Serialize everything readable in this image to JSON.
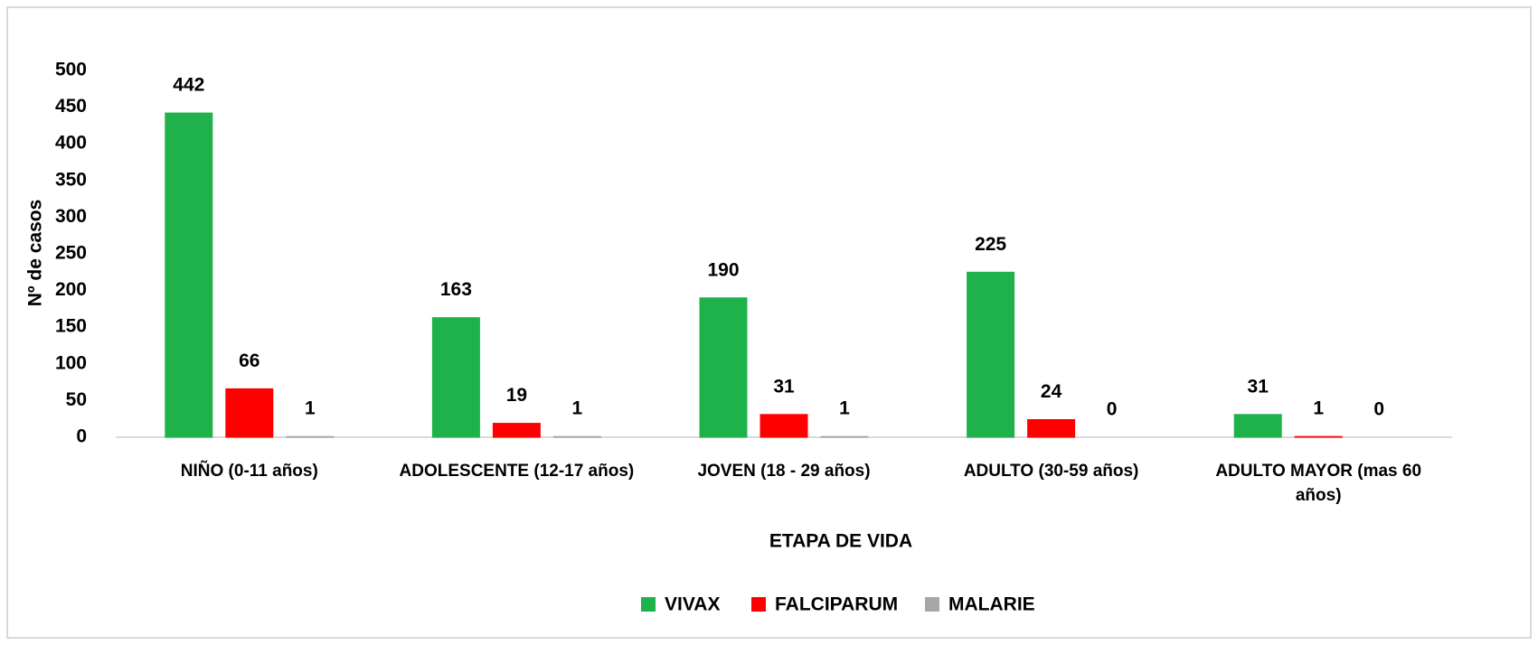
{
  "chart_data": {
    "type": "bar",
    "x_label": "ETAPA DE VIDA",
    "y_label": "Nº de casos",
    "categories": [
      "NIÑO (0-11 años)",
      "ADOLESCENTE (12-17 años)",
      "JOVEN (18 - 29 años)",
      "ADULTO (30-59 años)",
      "ADULTO MAYOR (mas 60 años)"
    ],
    "series": [
      {
        "name": "VIVAX",
        "color": "#1fb24a",
        "values": [
          442,
          163,
          190,
          225,
          31
        ]
      },
      {
        "name": "FALCIPARUM",
        "color": "#ff0000",
        "values": [
          66,
          19,
          31,
          24,
          1
        ]
      },
      {
        "name": "MALARIE",
        "color": "#a6a6a6",
        "values": [
          1,
          1,
          1,
          0,
          0
        ]
      }
    ],
    "ylim": [
      0,
      500
    ],
    "yticks": [
      0,
      50,
      100,
      150,
      200,
      250,
      300,
      350,
      400,
      450,
      500
    ],
    "grid": false,
    "legend": "bottom"
  }
}
